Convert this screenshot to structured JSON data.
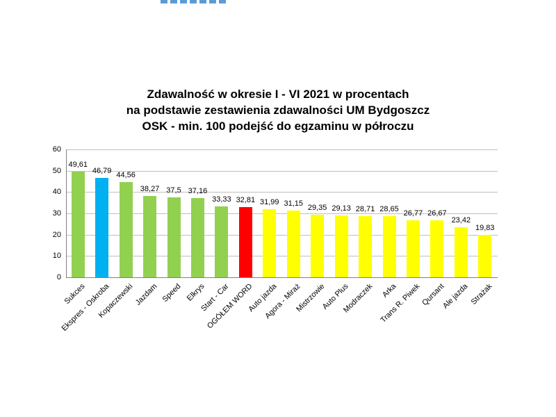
{
  "title": {
    "line1": "Zdawalność w okresie I - VI 2021 w procentach",
    "line2": "na podstawie zestawienia zdawalności UM Bydgoszcz",
    "line3": "OSK - min. 100 podejść do egzaminu w półroczu"
  },
  "chart_data": {
    "type": "bar",
    "title": "Zdawalność w okresie I - VI 2021 w procentach na podstawie zestawienia zdawalności UM Bydgoszcz OSK - min. 100 podejść do egzaminu w półroczu",
    "xlabel": "",
    "ylabel": "",
    "ylim": [
      0,
      60
    ],
    "yticks": [
      0,
      10,
      20,
      30,
      40,
      50,
      60
    ],
    "grid": true,
    "legend_position": "none",
    "categories": [
      "Sukces",
      "Ekspres - Oskroba",
      "Kopaczewski",
      "Jazdam",
      "Speed",
      "Elkrys",
      "Start - Car",
      "OGÓŁEM WORD",
      "Auto jazda",
      "Agora - Miraż",
      "Mistrzowie",
      "Auto Plus",
      "Modraczek",
      "Arka",
      "Trans R. Piwek",
      "Qursant",
      "Ale jazda",
      "Strażak"
    ],
    "values": [
      49.61,
      46.79,
      44.56,
      38.27,
      37.5,
      37.16,
      33.33,
      32.81,
      31.99,
      31.15,
      29.35,
      29.13,
      28.71,
      28.65,
      26.77,
      26.67,
      23.42,
      19.83
    ],
    "value_labels": [
      "49,61",
      "46,79",
      "44,56",
      "38,27",
      "37,5",
      "37,16",
      "33,33",
      "32,81",
      "31,99",
      "31,15",
      "29,35",
      "29,13",
      "28,71",
      "28,65",
      "26,77",
      "26,67",
      "23,42",
      "19,83"
    ],
    "bar_colors": [
      "#92d050",
      "#00b0f0",
      "#92d050",
      "#92d050",
      "#92d050",
      "#92d050",
      "#92d050",
      "#ff0000",
      "#ffff00",
      "#ffff00",
      "#ffff00",
      "#ffff00",
      "#ffff00",
      "#ffff00",
      "#ffff00",
      "#ffff00",
      "#ffff00",
      "#ffff00"
    ]
  },
  "colors": {
    "green_bar": "#92d050",
    "blue_bar": "#00b0f0",
    "red_bar": "#ff0000",
    "yellow_bar": "#ffff00",
    "gridline": "#bfbfbf",
    "axis_line": "#808080",
    "text": "#000000",
    "top_dashes": "#5b9bd5"
  }
}
